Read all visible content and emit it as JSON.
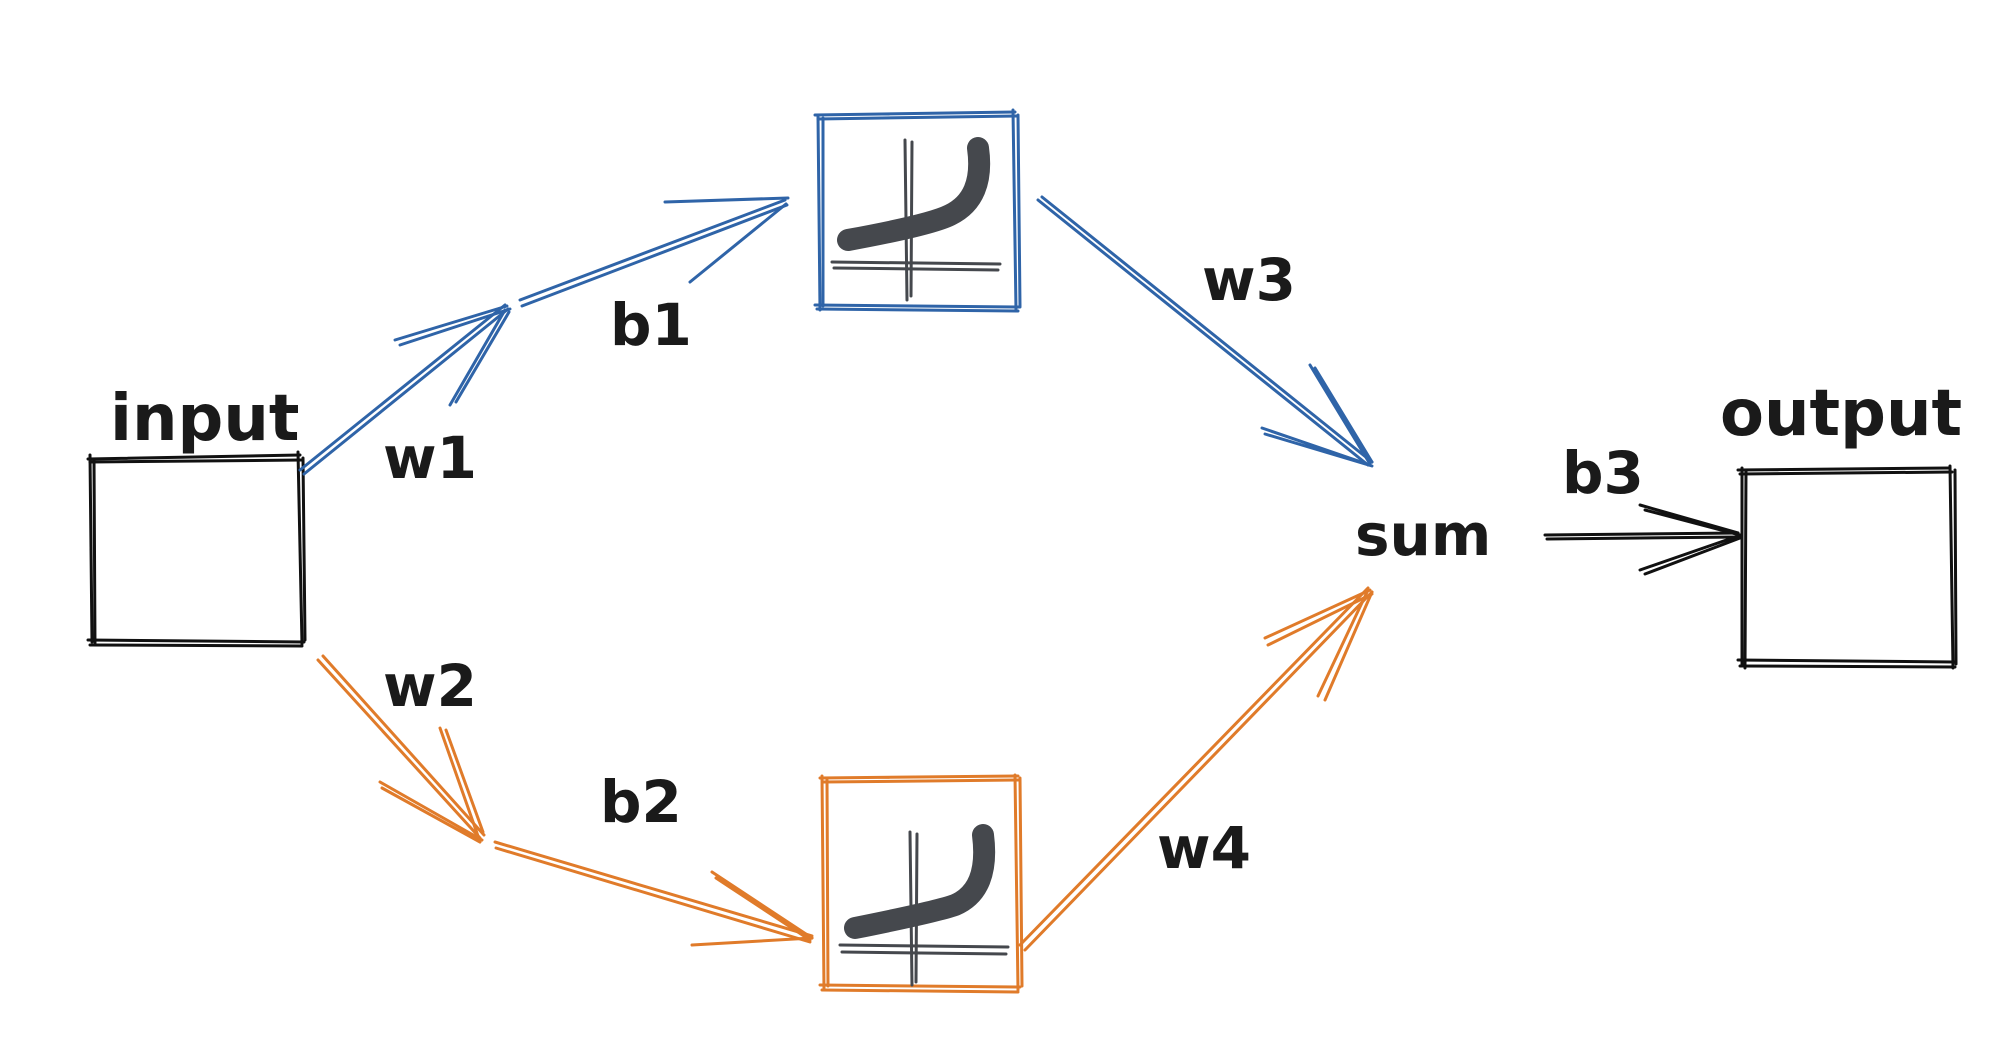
{
  "colors": {
    "top_path": "#2f64a8",
    "bottom_path": "#e07b2a",
    "ink": "#111111",
    "curve": "#45484d"
  },
  "nodes": {
    "input": "input",
    "output": "output",
    "sum": "sum"
  },
  "labels": {
    "w1": "w1",
    "w2": "w2",
    "w3": "w3",
    "w4": "w4",
    "b1": "b1",
    "b2": "b2",
    "b3": "b3"
  },
  "icons": {
    "activation_top": "softplus-activation-icon",
    "activation_bottom": "softplus-activation-icon"
  }
}
